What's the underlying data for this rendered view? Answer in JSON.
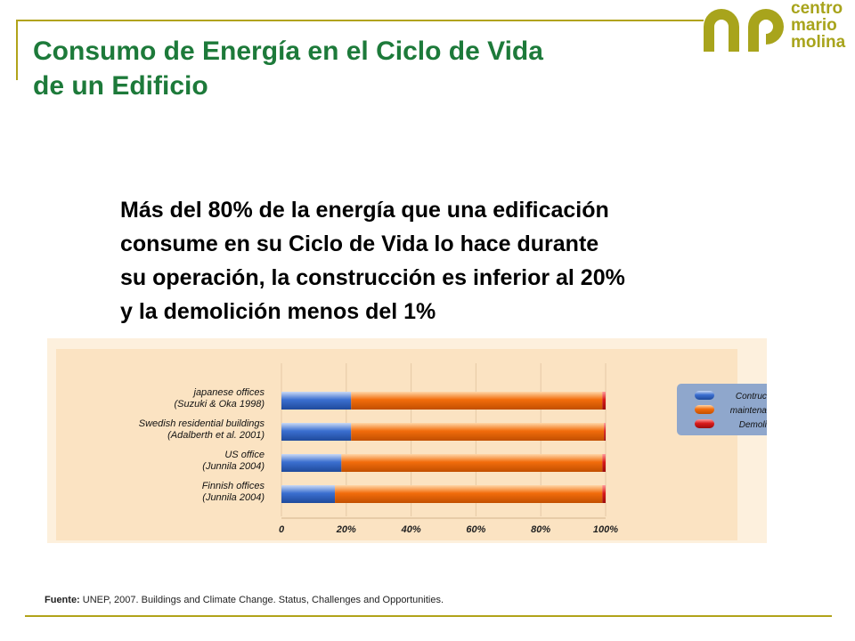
{
  "slide": {
    "title_line1": "Consumo de Energía en el Ciclo de Vida",
    "title_line2": "de un Edificio",
    "headline_lines": [
      "Más del 80% de la energía que una edificación",
      "consume en su Ciclo de Vida lo hace durante",
      "su operación, la construcción es inferior al 20%",
      "y la demolición menos del 1%"
    ],
    "source_label": "Fuente:",
    "source_text": "UNEP, 2007.  Buildings and Climate Change. Status, Challenges and Opportunities."
  },
  "logo": {
    "lines": [
      "centro",
      "mario",
      "molina"
    ],
    "color": "#a8a41c"
  },
  "colors": {
    "title": "#1d7a3a",
    "accent_rule": "#b1a31a",
    "construction": "#3b6fd0",
    "maintenance": "#f26c0c",
    "demolition": "#d91a1a",
    "chart_background": "#fbe3c2",
    "legend_box": "#8fa7cc"
  },
  "chart_data": {
    "type": "bar",
    "orientation": "horizontal",
    "stacked": true,
    "categories": [
      [
        "japanese offices",
        "(Suzuki & Oka 1998)"
      ],
      [
        "Swedish residential buildings",
        "(Adalberth et al. 2001)"
      ],
      [
        "US office",
        "(Junnila 2004)"
      ],
      [
        "Finnish offices",
        "(Junnila 2004)"
      ]
    ],
    "series": [
      {
        "name": "Contruction",
        "values": [
          21.5,
          21.5,
          18.5,
          16.5
        ]
      },
      {
        "name": "maintenance",
        "values": [
          77.5,
          78,
          80.5,
          82.5
        ]
      },
      {
        "name": "Demolition",
        "values": [
          1,
          0.5,
          1,
          1
        ]
      }
    ],
    "x_ticks": [
      "0",
      "20%",
      "40%",
      "60%",
      "80%",
      "100%"
    ],
    "xlim": [
      0,
      100
    ],
    "grid": true,
    "legend_position": "right"
  }
}
